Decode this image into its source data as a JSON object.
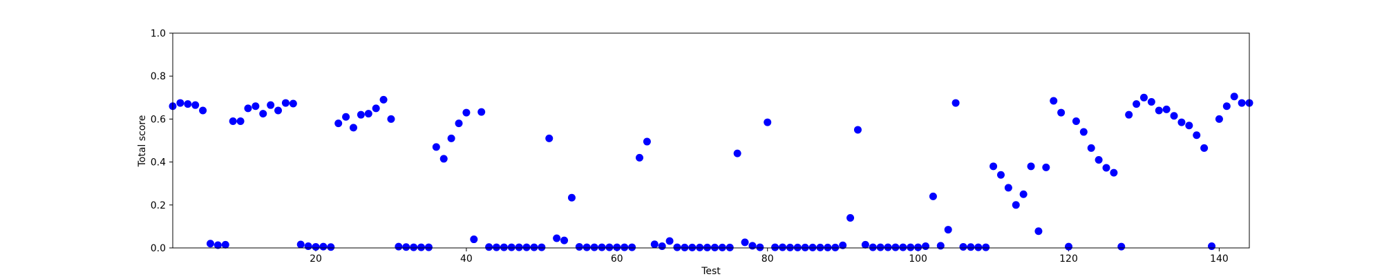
{
  "chart_data": {
    "type": "scatter",
    "title": "",
    "xlabel": "Test",
    "ylabel": "Total score",
    "xlim": [
      1,
      144
    ],
    "ylim": [
      0,
      1
    ],
    "x_ticks": [
      20,
      40,
      60,
      80,
      100,
      120,
      140
    ],
    "x_tick_labels": [
      "20",
      "40",
      "60",
      "80",
      "100",
      "120",
      "140"
    ],
    "y_ticks": [
      0,
      0.2,
      0.4,
      0.6,
      0.8,
      1
    ],
    "y_tick_labels": [
      "0.0",
      "0.2",
      "0.4",
      "0.6",
      "0.8",
      "1.0"
    ],
    "grid": false,
    "legend": false,
    "marker_color": "#0000ff",
    "x": [
      1,
      2,
      3,
      4,
      5,
      6,
      7,
      8,
      9,
      10,
      11,
      12,
      13,
      14,
      15,
      16,
      17,
      18,
      19,
      20,
      21,
      22,
      23,
      24,
      25,
      26,
      27,
      28,
      29,
      30,
      31,
      32,
      33,
      34,
      35,
      36,
      37,
      38,
      39,
      40,
      41,
      42,
      43,
      44,
      45,
      46,
      47,
      48,
      49,
      50,
      51,
      52,
      53,
      54,
      55,
      56,
      57,
      58,
      59,
      60,
      61,
      62,
      63,
      64,
      65,
      66,
      67,
      68,
      69,
      70,
      71,
      72,
      73,
      74,
      75,
      76,
      77,
      78,
      79,
      80,
      81,
      82,
      83,
      84,
      85,
      86,
      87,
      88,
      89,
      90,
      91,
      92,
      93,
      94,
      95,
      96,
      97,
      98,
      99,
      100,
      101,
      102,
      103,
      104,
      105,
      106,
      107,
      108,
      109,
      110,
      111,
      112,
      113,
      114,
      115,
      116,
      117,
      118,
      119,
      120,
      121,
      122,
      123,
      124,
      125,
      126,
      127,
      128,
      129,
      130,
      131,
      132,
      133,
      134,
      135,
      136,
      137,
      138,
      139,
      140,
      141,
      142,
      143,
      144
    ],
    "y": [
      0.66,
      0.675,
      0.67,
      0.665,
      0.64,
      0.02,
      0.013,
      0.015,
      0.59,
      0.59,
      0.65,
      0.66,
      0.625,
      0.665,
      0.64,
      0.675,
      0.672,
      0.016,
      0.008,
      0.005,
      0.006,
      0.004,
      0.58,
      0.61,
      0.56,
      0.62,
      0.625,
      0.65,
      0.69,
      0.6,
      0.006,
      0.004,
      0.003,
      0.003,
      0.003,
      0.47,
      0.415,
      0.51,
      0.58,
      0.63,
      0.04,
      0.633,
      0.004,
      0.003,
      0.003,
      0.003,
      0.003,
      0.003,
      0.003,
      0.003,
      0.51,
      0.045,
      0.035,
      0.234,
      0.005,
      0.003,
      0.003,
      0.003,
      0.003,
      0.003,
      0.003,
      0.003,
      0.42,
      0.495,
      0.017,
      0.008,
      0.032,
      0.003,
      0.002,
      0.002,
      0.002,
      0.002,
      0.002,
      0.002,
      0.002,
      0.44,
      0.026,
      0.01,
      0.003,
      0.585,
      0.003,
      0.003,
      0.002,
      0.002,
      0.002,
      0.002,
      0.002,
      0.002,
      0.002,
      0.012,
      0.14,
      0.55,
      0.015,
      0.003,
      0.003,
      0.003,
      0.003,
      0.003,
      0.003,
      0.003,
      0.008,
      0.24,
      0.01,
      0.085,
      0.675,
      0.005,
      0.004,
      0.003,
      0.003,
      0.38,
      0.34,
      0.28,
      0.2,
      0.25,
      0.38,
      0.078,
      0.375,
      0.685,
      0.63,
      0.006,
      0.59,
      0.54,
      0.465,
      0.41,
      0.373,
      0.35,
      0.006,
      0.62,
      0.67,
      0.7,
      0.68,
      0.64,
      0.645,
      0.615,
      0.585,
      0.57,
      0.525,
      0.465,
      0.008,
      0.6,
      0.66,
      0.705,
      0.675,
      0.675
    ]
  }
}
